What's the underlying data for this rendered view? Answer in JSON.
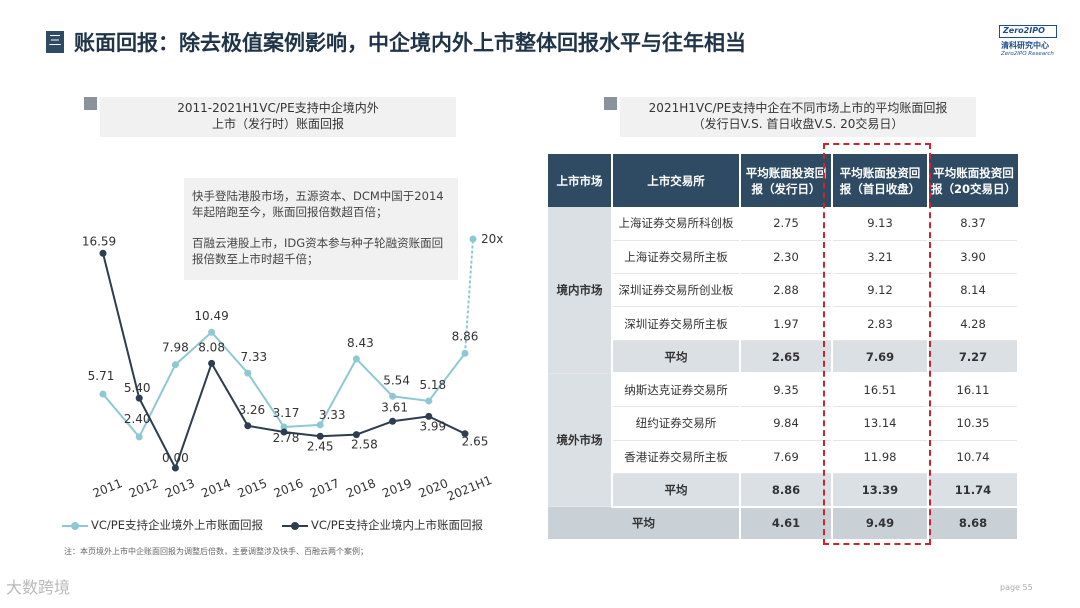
{
  "header": {
    "marker": "三",
    "title": "账面回报：除去极值案例影响，中企境内外上市整体回报水平与往年相当"
  },
  "logo": {
    "box": "Zero2IPO",
    "cn": "清科研究中心",
    "en": "Zero2IPO Research"
  },
  "left_caption": [
    "2011-2021H1VC/PE支持中企境内外",
    "上市（发行时）账面回报"
  ],
  "note": [
    "快手登陆港股市场，五源资本、DCM中国于2014年起陪跑至今，账面回报倍数超百倍；",
    "百融云港股上市，IDG资本参与种子轮融资账面回报倍数至上市时超千倍；"
  ],
  "colors": {
    "overseas": "#8ec8d4",
    "domestic": "#2c3e50",
    "header_bg": "#2f4b63",
    "highlight": "#c9252c"
  },
  "chart_data": {
    "type": "line",
    "categories": [
      "2011",
      "2012",
      "2013",
      "2014",
      "2015",
      "2016",
      "2017",
      "2018",
      "2019",
      "2020",
      "2021H1"
    ],
    "series": [
      {
        "name": "VC/PE支持企业境外上市账面回报",
        "values": [
          5.71,
          2.4,
          7.98,
          10.49,
          7.33,
          3.17,
          3.33,
          8.43,
          5.54,
          5.18,
          8.86
        ],
        "extra_point_label": "20x"
      },
      {
        "name": "VC/PE支持企业境内上市账面回报",
        "values": [
          16.59,
          5.4,
          0.0,
          8.08,
          3.26,
          2.78,
          2.45,
          2.58,
          3.61,
          3.99,
          2.65
        ]
      }
    ],
    "value_labels_overseas": [
      "5.71",
      "2.40",
      "7.98",
      "10.49",
      "7.33",
      "3.17",
      "3.33",
      "8.43",
      "5.54",
      "5.18",
      "8.86"
    ],
    "value_labels_domestic": [
      "16.59",
      "5.40",
      "0.00",
      "8.08",
      "3.26",
      "2.78",
      "2.45",
      "2.58",
      "3.61",
      "3.99",
      "2.65"
    ],
    "ylim": [
      0,
      18
    ],
    "legend": "bottom",
    "grid": false
  },
  "footnote": "注：本页境外上市中企账面回报为调整后倍数，主要调整涉及快手、百融云两个案例；",
  "watermark": "大数跨境",
  "page_label": "page  55",
  "right_caption": [
    "2021H1VC/PE支持中企在不同市场上市的平均账面回报",
    "（发行日V.S. 首日收盘V.S. 20交易日）"
  ],
  "table": {
    "headers": [
      "上市市场",
      "上市交易所",
      "平均账面投资回报（发行日）",
      "平均账面投资回报（首日收盘）",
      "平均账面投资回报（20交易日）"
    ],
    "groups": [
      {
        "market": "境内市场",
        "rows": [
          [
            "上海证券交易所科创板",
            "2.75",
            "9.13",
            "8.37"
          ],
          [
            "上海证券交易所主板",
            "2.30",
            "3.21",
            "3.90"
          ],
          [
            "深圳证券交易所创业板",
            "2.88",
            "9.12",
            "8.14"
          ],
          [
            "深圳证券交易所主板",
            "1.97",
            "2.83",
            "4.28"
          ]
        ],
        "avg": [
          "平均",
          "2.65",
          "7.69",
          "7.27"
        ]
      },
      {
        "market": "境外市场",
        "rows": [
          [
            "纳斯达克证券交易所",
            "9.35",
            "16.51",
            "16.11"
          ],
          [
            "纽约证券交易所",
            "9.84",
            "13.14",
            "10.35"
          ],
          [
            "香港证券交易所主板",
            "7.69",
            "11.98",
            "10.74"
          ]
        ],
        "avg": [
          "平均",
          "8.86",
          "13.39",
          "11.74"
        ]
      }
    ],
    "total": [
      "平均",
      "4.61",
      "9.49",
      "8.68"
    ]
  }
}
